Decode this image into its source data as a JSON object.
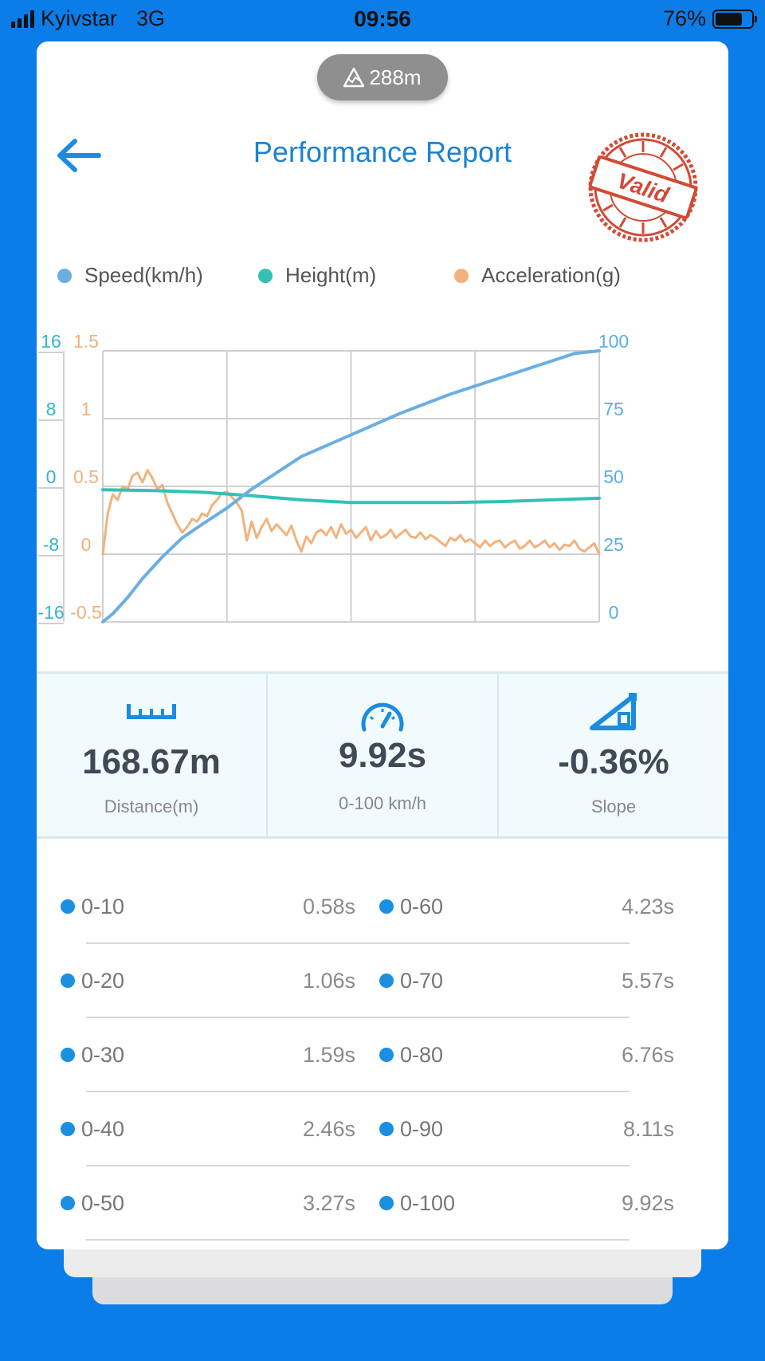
{
  "status_bar": {
    "carrier": "Kyivstar",
    "network": "3G",
    "time": "09:56",
    "battery": "76%",
    "battery_level": 0.76
  },
  "header": {
    "altitude": "288m",
    "title": "Performance Report",
    "stamp_text": "Valid"
  },
  "legend": [
    {
      "label": "Speed(km/h)",
      "color": "#6aaee3"
    },
    {
      "label": "Height(m)",
      "color": "#33c1b6"
    },
    {
      "label": "Acceleration(g)",
      "color": "#f2b27d"
    }
  ],
  "chart_data": {
    "type": "line",
    "height_axis": {
      "ticks": [
        "16",
        "8",
        "0",
        "-8",
        "-16"
      ],
      "range": [
        -16,
        16
      ]
    },
    "acceleration_axis": {
      "ticks": [
        "1.5",
        "1",
        "0.5",
        "0",
        "-0.5"
      ],
      "range": [
        -0.5,
        1.5
      ]
    },
    "speed_axis": {
      "ticks": [
        "100",
        "75",
        "50",
        "25",
        "0"
      ],
      "range": [
        0,
        100
      ]
    },
    "x_range": [
      0,
      1
    ],
    "grid": true,
    "series": [
      {
        "name": "Speed(km/h)",
        "color": "#6aaee3",
        "axis": "speed",
        "x": [
          0,
          0.02,
          0.05,
          0.08,
          0.12,
          0.16,
          0.2,
          0.25,
          0.3,
          0.35,
          0.4,
          0.5,
          0.6,
          0.7,
          0.8,
          0.9,
          0.95,
          1.0
        ],
        "values": [
          0,
          3,
          9,
          16,
          24,
          31,
          36,
          42,
          49,
          55,
          61,
          69,
          77,
          84,
          90,
          96,
          99,
          100
        ]
      },
      {
        "name": "Height(m)",
        "color": "#33c1b6",
        "axis": "height",
        "x": [
          0,
          0.1,
          0.2,
          0.3,
          0.4,
          0.5,
          0.6,
          0.7,
          0.8,
          0.9,
          1.0
        ],
        "values": [
          -0.4,
          -0.5,
          -0.7,
          -1.1,
          -1.6,
          -1.9,
          -1.9,
          -1.9,
          -1.8,
          -1.6,
          -1.4
        ]
      },
      {
        "name": "Acceleration(g)",
        "color": "#f2b27d",
        "axis": "acceleration",
        "x": [
          0,
          0.01,
          0.02,
          0.03,
          0.04,
          0.05,
          0.06,
          0.07,
          0.08,
          0.09,
          0.1,
          0.11,
          0.12,
          0.13,
          0.14,
          0.15,
          0.16,
          0.17,
          0.18,
          0.19,
          0.2,
          0.21,
          0.22,
          0.23,
          0.24,
          0.25,
          0.26,
          0.27,
          0.28,
          0.29,
          0.3,
          0.31,
          0.32,
          0.33,
          0.34,
          0.35,
          0.36,
          0.37,
          0.38,
          0.39,
          0.4,
          0.41,
          0.42,
          0.43,
          0.44,
          0.45,
          0.46,
          0.47,
          0.48,
          0.49,
          0.5,
          0.51,
          0.52,
          0.53,
          0.54,
          0.55,
          0.56,
          0.57,
          0.58,
          0.59,
          0.6,
          0.61,
          0.62,
          0.63,
          0.64,
          0.65,
          0.66,
          0.67,
          0.68,
          0.69,
          0.7,
          0.71,
          0.72,
          0.73,
          0.74,
          0.75,
          0.76,
          0.77,
          0.78,
          0.79,
          0.8,
          0.81,
          0.82,
          0.83,
          0.84,
          0.85,
          0.86,
          0.87,
          0.88,
          0.89,
          0.9,
          0.91,
          0.92,
          0.93,
          0.94,
          0.95,
          0.96,
          0.97,
          0.98,
          0.99,
          1.0
        ],
        "values": [
          0.0,
          0.3,
          0.44,
          0.4,
          0.5,
          0.48,
          0.58,
          0.6,
          0.53,
          0.62,
          0.56,
          0.48,
          0.51,
          0.38,
          0.3,
          0.22,
          0.16,
          0.2,
          0.26,
          0.24,
          0.3,
          0.28,
          0.36,
          0.4,
          0.45,
          0.46,
          0.42,
          0.38,
          0.32,
          0.1,
          0.24,
          0.12,
          0.2,
          0.26,
          0.17,
          0.22,
          0.18,
          0.14,
          0.21,
          0.1,
          0.02,
          0.13,
          0.08,
          0.16,
          0.18,
          0.14,
          0.2,
          0.12,
          0.22,
          0.15,
          0.18,
          0.12,
          0.16,
          0.2,
          0.1,
          0.17,
          0.12,
          0.14,
          0.18,
          0.12,
          0.15,
          0.18,
          0.13,
          0.12,
          0.16,
          0.11,
          0.14,
          0.12,
          0.09,
          0.06,
          0.12,
          0.1,
          0.14,
          0.09,
          0.11,
          0.08,
          0.05,
          0.1,
          0.06,
          0.09,
          0.1,
          0.05,
          0.08,
          0.1,
          0.04,
          0.06,
          0.1,
          0.05,
          0.07,
          0.1,
          0.05,
          0.08,
          0.03,
          0.07,
          0.06,
          0.1,
          0.04,
          0.02,
          0.05,
          0.08,
          0.0
        ]
      }
    ]
  },
  "stats": [
    {
      "value": "168.67m",
      "label": "Distance(m)",
      "icon": "ruler-icon"
    },
    {
      "value": "9.92s",
      "label": "0-100 km/h",
      "icon": "speedometer-icon"
    },
    {
      "value": "-0.36%",
      "label": "Slope",
      "icon": "slope-icon"
    }
  ],
  "splits": [
    {
      "left": {
        "label": "0-10",
        "time": "0.58s"
      },
      "right": {
        "label": "0-60",
        "time": "4.23s"
      }
    },
    {
      "left": {
        "label": "0-20",
        "time": "1.06s"
      },
      "right": {
        "label": "0-70",
        "time": "5.57s"
      }
    },
    {
      "left": {
        "label": "0-30",
        "time": "1.59s"
      },
      "right": {
        "label": "0-80",
        "time": "6.76s"
      }
    },
    {
      "left": {
        "label": "0-40",
        "time": "2.46s"
      },
      "right": {
        "label": "0-90",
        "time": "8.11s"
      }
    },
    {
      "left": {
        "label": "0-50",
        "time": "3.27s"
      },
      "right": {
        "label": "0-100",
        "time": "9.92s"
      }
    }
  ]
}
